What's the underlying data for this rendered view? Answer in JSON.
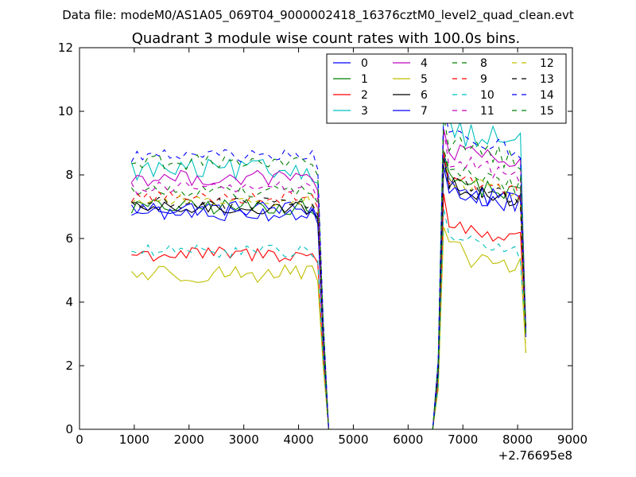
{
  "chart_data": {
    "type": "line",
    "suptitle": "Data file: modeM0/AS1A05_069T04_9000002418_16376cztM0_level2_quad_clean.evt",
    "title": "Quadrant 3 module wise count rates with 100.0s bins.",
    "xlabel": "",
    "ylabel": "",
    "x_offset_label": "+2.76695e8",
    "xlim": [
      0,
      9000
    ],
    "ylim": [
      0,
      12
    ],
    "xticks": [
      0,
      1000,
      2000,
      3000,
      4000,
      5000,
      6000,
      7000,
      8000,
      9000
    ],
    "yticks": [
      0,
      2,
      4,
      6,
      8,
      10,
      12
    ],
    "legend_location": "upper-right",
    "legend_columns": 4,
    "x": [
      950,
      1050,
      1150,
      1250,
      1350,
      1450,
      1550,
      1650,
      1750,
      1850,
      1950,
      2050,
      2150,
      2250,
      2350,
      2450,
      2550,
      2650,
      2750,
      2850,
      2950,
      3050,
      3150,
      3250,
      3350,
      3450,
      3550,
      3650,
      3750,
      3850,
      3950,
      4050,
      4150,
      4250,
      4350,
      4450,
      4550,
      4650,
      4750,
      4850,
      4950,
      5050,
      5150,
      5250,
      5350,
      5450,
      5550,
      5650,
      5750,
      5850,
      5950,
      6050,
      6150,
      6250,
      6350,
      6450,
      6550,
      6650,
      6750,
      6850,
      6950,
      7050,
      7150,
      7250,
      7350,
      7450,
      7550,
      7650,
      7750,
      7850,
      7950,
      8050,
      8150
    ],
    "segments": {
      "active_1": [
        950,
        4350
      ],
      "transition_down": [
        4350,
        4550
      ],
      "gap": [
        4550,
        6450
      ],
      "transition_up": [
        6450,
        6650
      ],
      "active_2": [
        6650,
        8150
      ]
    },
    "series": [
      {
        "name": "0",
        "style": "solid",
        "color": "#0000ff",
        "base1": 6.95,
        "base2": 7.0,
        "amp": 0.25,
        "end": 2.9
      },
      {
        "name": "1",
        "style": "solid",
        "color": "#008000",
        "base1": 7.0,
        "base2": 7.3,
        "amp": 0.25,
        "end": 3.1
      },
      {
        "name": "2",
        "style": "solid",
        "color": "#ff0000",
        "base1": 5.5,
        "base2": 5.9,
        "amp": 0.25,
        "end": 3.0
      },
      {
        "name": "3",
        "style": "solid",
        "color": "#00bfbf",
        "base1": 8.15,
        "base2": 8.9,
        "amp": 0.35,
        "end": 3.0
      },
      {
        "name": "4",
        "style": "solid",
        "color": "#bf00bf",
        "base1": 7.9,
        "base2": 8.2,
        "amp": 0.25,
        "end": 3.2
      },
      {
        "name": "5",
        "style": "solid",
        "color": "#bfbf00",
        "base1": 4.9,
        "base2": 5.0,
        "amp": 0.3,
        "end": 2.4
      },
      {
        "name": "6",
        "style": "solid",
        "color": "#000000",
        "base1": 6.95,
        "base2": 7.1,
        "amp": 0.2,
        "end": 3.1
      },
      {
        "name": "7",
        "style": "solid",
        "color": "#0000ff",
        "base1": 6.8,
        "base2": 7.0,
        "amp": 0.25,
        "end": 3.0
      },
      {
        "name": "8",
        "style": "dashed",
        "color": "#008000",
        "base1": 7.5,
        "base2": 7.6,
        "amp": 0.2,
        "end": 3.1
      },
      {
        "name": "9",
        "style": "dashed",
        "color": "#ff0000",
        "base1": 7.3,
        "base2": 7.4,
        "amp": 0.2,
        "end": 3.1
      },
      {
        "name": "10",
        "style": "dashed",
        "color": "#00bfbf",
        "base1": 5.6,
        "base2": 5.5,
        "amp": 0.2,
        "end": 3.0
      },
      {
        "name": "11",
        "style": "dashed",
        "color": "#bf00bf",
        "base1": 7.6,
        "base2": 7.9,
        "amp": 0.2,
        "end": 3.1
      },
      {
        "name": "12",
        "style": "dashed",
        "color": "#bfbf00",
        "base1": 7.2,
        "base2": 7.3,
        "amp": 0.2,
        "end": 2.4
      },
      {
        "name": "13",
        "style": "dashed",
        "color": "#000000",
        "base1": 7.1,
        "base2": 7.2,
        "amp": 0.2,
        "end": 3.1
      },
      {
        "name": "14",
        "style": "dashed",
        "color": "#0000ff",
        "base1": 8.6,
        "base2": 8.7,
        "amp": 0.2,
        "end": 3.0
      },
      {
        "name": "15",
        "style": "dashed",
        "color": "#008000",
        "base1": 8.4,
        "base2": 8.4,
        "amp": 0.25,
        "end": 3.0
      }
    ]
  }
}
